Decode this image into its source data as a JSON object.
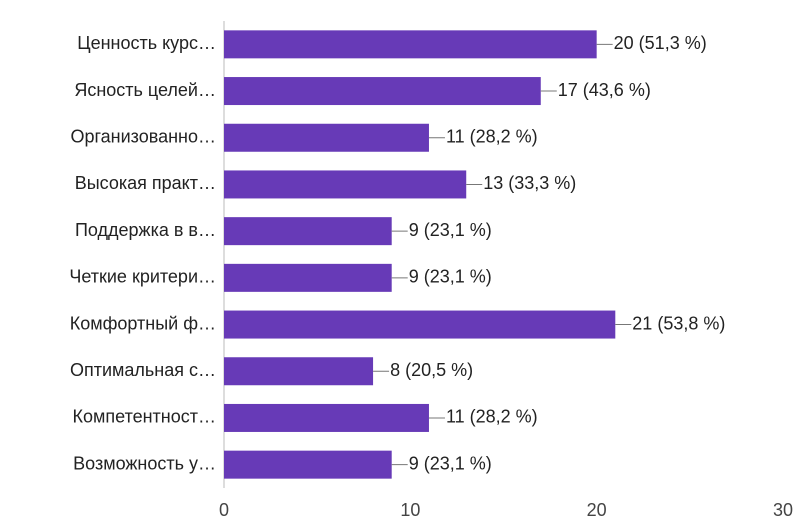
{
  "chart_data": {
    "type": "bar",
    "orientation": "horizontal",
    "categories": [
      "Ценность курс…",
      "Ясность целей…",
      "Организованно…",
      "Высокая практ…",
      "Поддержка в в…",
      "Четкие критери…",
      "Комфортный ф…",
      "Оптимальная с…",
      "Компетентност…",
      "Возможность у…"
    ],
    "values": [
      20,
      17,
      11,
      13,
      9,
      9,
      21,
      8,
      11,
      9
    ],
    "value_labels": [
      "20 (51,3 %)",
      "17 (43,6 %)",
      "11 (28,2 %)",
      "13 (33,3 %)",
      "9 (23,1 %)",
      "9 (23,1 %)",
      "21 (53,8 %)",
      "8 (20,5 %)",
      "11 (28,2 %)",
      "9 (23,1 %)"
    ],
    "color": "#673ab7",
    "xlim": [
      0,
      30
    ],
    "xticks": [
      0,
      10,
      20,
      30
    ]
  }
}
